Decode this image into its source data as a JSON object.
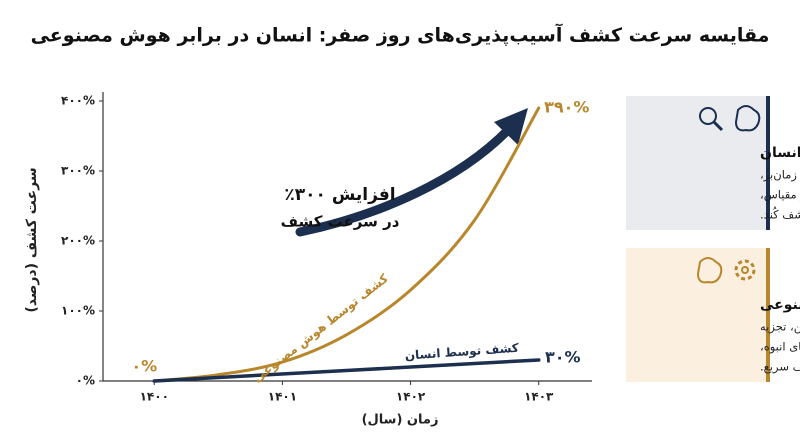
{
  "chart_data": {
    "type": "line",
    "title": "مقایسه سرعت کشف آسیب‌پذیری‌های روز صفر: انسان در برابر هوش مصنوعی",
    "x_label": "زمان (سال)",
    "y_label": "سرعت کشف (درصد)",
    "xlim": [
      1399.6,
      1403.4
    ],
    "xticks": [
      {
        "value": 1400,
        "label": "۱۴۰۰"
      },
      {
        "value": 1401,
        "label": "۱۴۰۱"
      },
      {
        "value": 1402,
        "label": "۱۴۰۲"
      },
      {
        "value": 1403,
        "label": "۱۴۰۳"
      }
    ],
    "ylim": [
      0,
      400
    ],
    "yticks": [
      {
        "value": 0,
        "label": "۰%"
      },
      {
        "value": 100,
        "label": "۱۰۰%"
      },
      {
        "value": 200,
        "label": "۲۰۰%"
      },
      {
        "value": 300,
        "label": "۳۰۰%"
      },
      {
        "value": 400,
        "label": "۴۰۰%"
      }
    ],
    "series": [
      {
        "name": "کشف توسط هوش مصنوعی",
        "color": "#b8862b",
        "x": [
          1400,
          1400.5,
          1401,
          1401.5,
          1402,
          1402.5,
          1403
        ],
        "values": [
          0,
          9,
          27,
          66,
          130,
          230,
          390
        ],
        "value_labels": [
          "۰%",
          null,
          null,
          null,
          null,
          null,
          "۳۹۰%"
        ]
      },
      {
        "name": "کشف توسط انسان",
        "color": "#1c2f4f",
        "x": [
          1400,
          1403
        ],
        "values": [
          0,
          30
        ],
        "value_labels": [
          null,
          "۳۰%"
        ]
      }
    ],
    "annotation": [
      "افزایش ۳۰۰٪",
      "در سرعت کشف"
    ]
  },
  "cards": [
    {
      "title": "انسان",
      "lines": [
        "تحلیل دستی زمان‌بر،",
        "محدودیت در مقیاس،",
        "کشف کُند."
      ]
    },
    {
      "title": "هوش مصنوعی",
      "lines": [
        "یادگیری ماشین، تجزیه",
        "و تحلیل داده‌های انبوه،",
        "کشف سریع."
      ]
    }
  ]
}
